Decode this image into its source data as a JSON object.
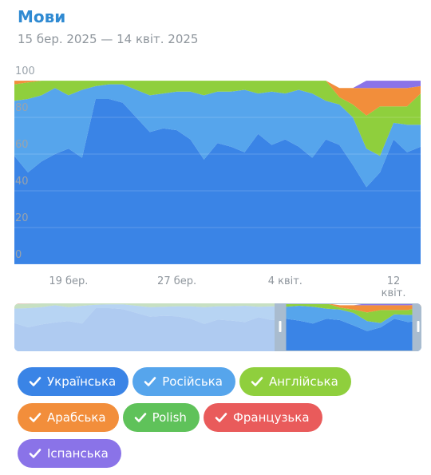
{
  "title": "Мови",
  "subtitle": "15 бер. 2025 — 14 квіт. 2025",
  "chart_data": {
    "type": "area",
    "stacked": true,
    "percent": true,
    "ylim": [
      0,
      100
    ],
    "y_ticks": [
      "0",
      "20",
      "40",
      "60",
      "80",
      "100"
    ],
    "x_ticks": [
      "19 бер.",
      "27 бер.",
      "4 квіт.",
      "12 квіт."
    ],
    "x_tick_index": [
      4,
      12,
      20,
      28
    ],
    "grid": true,
    "series": [
      {
        "name": "Українська",
        "color": "#3a84e6",
        "values": [
          59,
          50,
          56,
          60,
          63,
          58,
          90,
          90,
          88,
          80,
          72,
          74,
          73,
          68,
          57,
          66,
          64,
          61,
          71,
          65,
          68,
          64,
          58,
          68,
          65,
          54,
          42,
          50,
          68,
          61,
          64
        ]
      },
      {
        "name": "Російська",
        "color": "#56a5ec",
        "values": [
          30,
          40,
          36,
          36,
          29,
          37,
          7,
          8,
          10,
          15,
          20,
          19,
          21,
          26,
          35,
          28,
          30,
          34,
          22,
          29,
          25,
          31,
          35,
          21,
          22,
          26,
          21,
          9,
          9,
          15,
          12
        ]
      },
      {
        "name": "Англійська",
        "color": "#8fcf3d",
        "values": [
          9,
          9,
          8,
          4,
          8,
          5,
          3,
          2,
          2,
          5,
          8,
          7,
          6,
          6,
          8,
          6,
          6,
          5,
          7,
          6,
          7,
          5,
          7,
          11,
          4,
          7,
          18,
          27,
          9,
          10,
          17
        ]
      },
      {
        "name": "Арабська",
        "color": "#f28e3b",
        "values": [
          2,
          1,
          0,
          0,
          0,
          0,
          0,
          0,
          0,
          0,
          0,
          0,
          0,
          0,
          0,
          0,
          0,
          0,
          0,
          0,
          0,
          0,
          0,
          0,
          5,
          9,
          15,
          10,
          10,
          10,
          4
        ]
      },
      {
        "name": "Polish",
        "color": "#5fc25a",
        "values": [
          0,
          0,
          0,
          0,
          0,
          0,
          0,
          0,
          0,
          0,
          0,
          0,
          0,
          0,
          0,
          0,
          0,
          0,
          0,
          0,
          0,
          0,
          0,
          0,
          0,
          0,
          0,
          0,
          0,
          0,
          0
        ]
      },
      {
        "name": "Французька",
        "color": "#e95b5b",
        "values": [
          0,
          0,
          0,
          0,
          0,
          0,
          0,
          0,
          0,
          0,
          0,
          0,
          0,
          0,
          0,
          0,
          0,
          0,
          0,
          0,
          0,
          0,
          0,
          0,
          0,
          0,
          0,
          0,
          0,
          0,
          0
        ]
      },
      {
        "name": "Іспанська",
        "color": "#8a73e8",
        "values": [
          0,
          0,
          0,
          0,
          0,
          0,
          0,
          0,
          0,
          0,
          0,
          0,
          0,
          0,
          0,
          0,
          0,
          0,
          0,
          0,
          0,
          0,
          0,
          0,
          0,
          0,
          4,
          4,
          4,
          4,
          3
        ]
      }
    ]
  }
}
